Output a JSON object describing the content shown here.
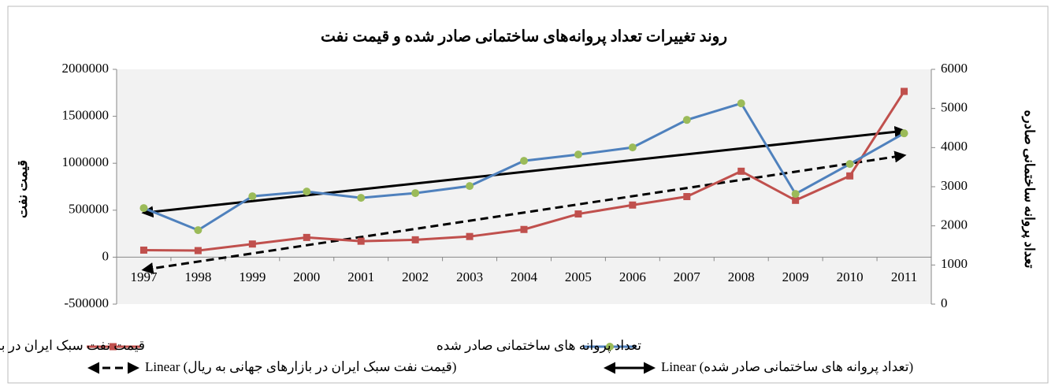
{
  "chart_data": {
    "type": "line",
    "title": "روند تغییرات تعداد پروانه‌های ساختمانی صادر شده و قیمت نفت",
    "ylabel": "قیمت نفت",
    "y2label": "تعداد پروانه ساختمانی صادره",
    "categories": [
      "1997",
      "1998",
      "1999",
      "2000",
      "2001",
      "2002",
      "2003",
      "2004",
      "2005",
      "2006",
      "2007",
      "2008",
      "2009",
      "2010",
      "2011"
    ],
    "ylim": [
      -500000,
      2000000
    ],
    "yticks": [
      -500000,
      0,
      500000,
      1000000,
      1500000,
      2000000
    ],
    "y2lim": [
      0,
      6000
    ],
    "y2ticks": [
      0,
      1000,
      2000,
      3000,
      4000,
      5000,
      6000
    ],
    "grid": false,
    "series": [
      {
        "name": "قیمت نفت سبک ایران  در بازارهای جهانی به ریال",
        "color": "#c0504d",
        "marker": "square",
        "marker_color": "#c0504d",
        "values": [
          75000,
          70000,
          140000,
          210000,
          170000,
          185000,
          220000,
          295000,
          460000,
          555000,
          645000,
          915000,
          605000,
          865000,
          1765000
        ]
      },
      {
        "name": "تعداد پروانه های ساختمانی صادر شده",
        "color": "#4f81bd",
        "marker": "circle",
        "marker_color": "#9bbb59",
        "axis": "y2",
        "values": [
          2455,
          1890,
          2757,
          2877,
          2716,
          2837,
          3018,
          3662,
          3823,
          4004,
          4708,
          5131,
          2817,
          3581,
          4366
        ]
      }
    ],
    "trendlines": [
      {
        "name": "Linear (قیمت نفت سبک ایران  در بازارهای جهانی به ریال)",
        "color": "#000000",
        "dashed": true,
        "x": [
          "1997",
          "2011"
        ],
        "values": [
          -134000,
          1084000
        ]
      },
      {
        "name": "Linear (تعداد پروانه های ساختمانی صادر شده)",
        "color": "#000000",
        "dashed": false,
        "axis": "y2",
        "x": [
          "1997",
          "2011"
        ],
        "values": [
          2334,
          4427
        ]
      }
    ]
  }
}
